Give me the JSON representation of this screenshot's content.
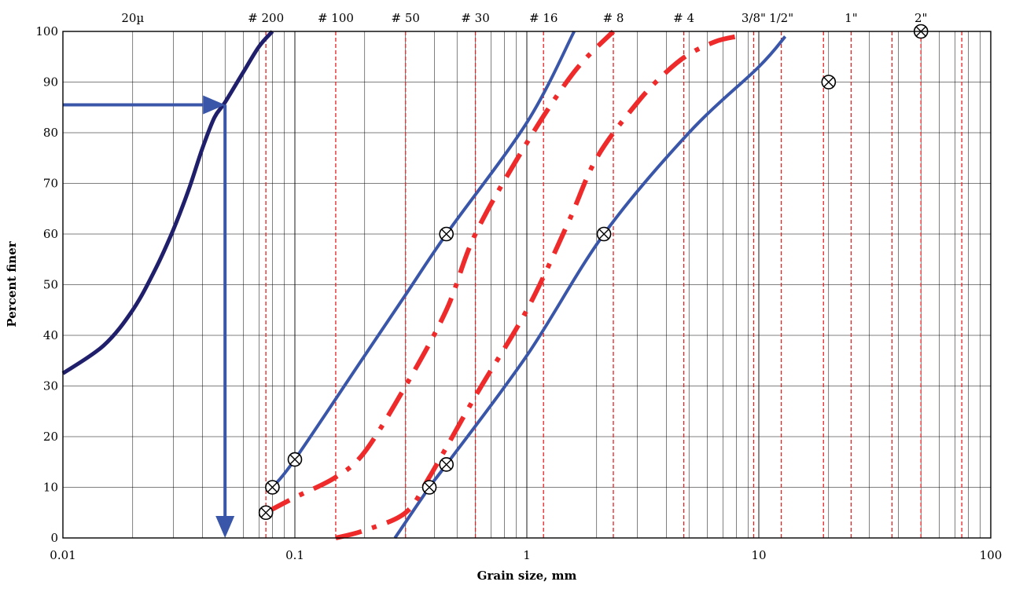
{
  "chart_data": {
    "type": "line",
    "title": "",
    "xlabel": "Grain size, mm",
    "ylabel": "Percent finer",
    "x_scale": "log",
    "xlim": [
      0.01,
      100
    ],
    "ylim": [
      0,
      100
    ],
    "x_ticks": [
      "0.01",
      "0.1",
      "1",
      "10",
      "100"
    ],
    "y_ticks": [
      "0",
      "10",
      "20",
      "30",
      "40",
      "50",
      "60",
      "70",
      "80",
      "90",
      "100"
    ],
    "grid": true,
    "sieve_lines": [
      {
        "label": "20µ",
        "size": 0.02,
        "line": false
      },
      {
        "label": "# 200",
        "size": 0.075,
        "line": true
      },
      {
        "label": "# 100",
        "size": 0.15,
        "line": true
      },
      {
        "label": "# 50",
        "size": 0.3,
        "line": true
      },
      {
        "label": "# 30",
        "size": 0.6,
        "line": true
      },
      {
        "label": "# 16",
        "size": 1.18,
        "line": true
      },
      {
        "label": "# 8",
        "size": 2.36,
        "line": true
      },
      {
        "label": "# 4",
        "size": 4.75,
        "line": true
      },
      {
        "label": "3/8\"",
        "size": 9.5,
        "line": true
      },
      {
        "label": "1/2\"",
        "size": 12.5,
        "line": true
      },
      {
        "label": "1\"",
        "size": 25,
        "line": true
      },
      {
        "label": "2\"",
        "size": 50,
        "line": true
      }
    ],
    "extra_sieve_lines": [
      19,
      37.5,
      75
    ],
    "series": [
      {
        "style": "solid-dark",
        "color": "#1f1f6b",
        "x": [
          0.01,
          0.015,
          0.02,
          0.025,
          0.03,
          0.035,
          0.04,
          0.045,
          0.05,
          0.06,
          0.07,
          0.08
        ],
        "y": [
          32.5,
          38,
          45,
          53,
          61,
          69,
          77,
          83,
          86,
          92,
          97,
          100
        ]
      },
      {
        "style": "solid-blue",
        "color": "#3a56a8",
        "x": [
          0.08,
          0.1,
          0.2,
          0.3,
          0.45,
          1.0,
          1.6
        ],
        "y": [
          10,
          15.5,
          36,
          48,
          60,
          82,
          100
        ]
      },
      {
        "style": "solid-blue",
        "color": "#3a56a8",
        "x": [
          0.27,
          0.38,
          0.45,
          1.0,
          2.15,
          5.0,
          10.0,
          13.0
        ],
        "y": [
          0,
          10,
          14.5,
          36,
          60,
          80,
          93,
          99
        ]
      },
      {
        "style": "dash-dot-red",
        "color": "#ee2a2a",
        "x": [
          0.075,
          0.1,
          0.15,
          0.2,
          0.3,
          0.45,
          0.6,
          1.0,
          1.6,
          2.36
        ],
        "y": [
          5,
          8,
          12,
          17,
          30,
          45,
          60,
          78,
          92,
          100
        ]
      },
      {
        "style": "dash-dot-red",
        "color": "#ee2a2a",
        "x": [
          0.15,
          0.2,
          0.3,
          0.38,
          0.6,
          1.0,
          1.5,
          2.0,
          3.0,
          4.0,
          5.0,
          6.5,
          8.0
        ],
        "y": [
          0,
          1.5,
          5,
          12,
          28,
          45,
          62,
          75,
          86,
          92,
          95.5,
          98,
          99
        ]
      }
    ],
    "markers": [
      {
        "x": 0.075,
        "y": 5
      },
      {
        "x": 0.08,
        "y": 10
      },
      {
        "x": 0.1,
        "y": 15.5
      },
      {
        "x": 0.38,
        "y": 10
      },
      {
        "x": 0.45,
        "y": 14.5
      },
      {
        "x": 0.45,
        "y": 60
      },
      {
        "x": 2.15,
        "y": 60
      },
      {
        "x": 20,
        "y": 90
      },
      {
        "x": 50,
        "y": 100
      }
    ],
    "annotation_arrows": [
      {
        "from": {
          "x": 0.01,
          "y": 85.5
        },
        "to": {
          "x": 0.05,
          "y": 85.5
        },
        "color": "#3a56a8"
      },
      {
        "from": {
          "x": 0.05,
          "y": 85.5
        },
        "to": {
          "x": 0.05,
          "y": 0
        },
        "color": "#3a56a8"
      }
    ],
    "colors": {
      "grid": "#000000",
      "sieve": "#e52222",
      "blue": "#3a56a8",
      "dark": "#1f1f6b",
      "red": "#ee2a2a"
    }
  }
}
